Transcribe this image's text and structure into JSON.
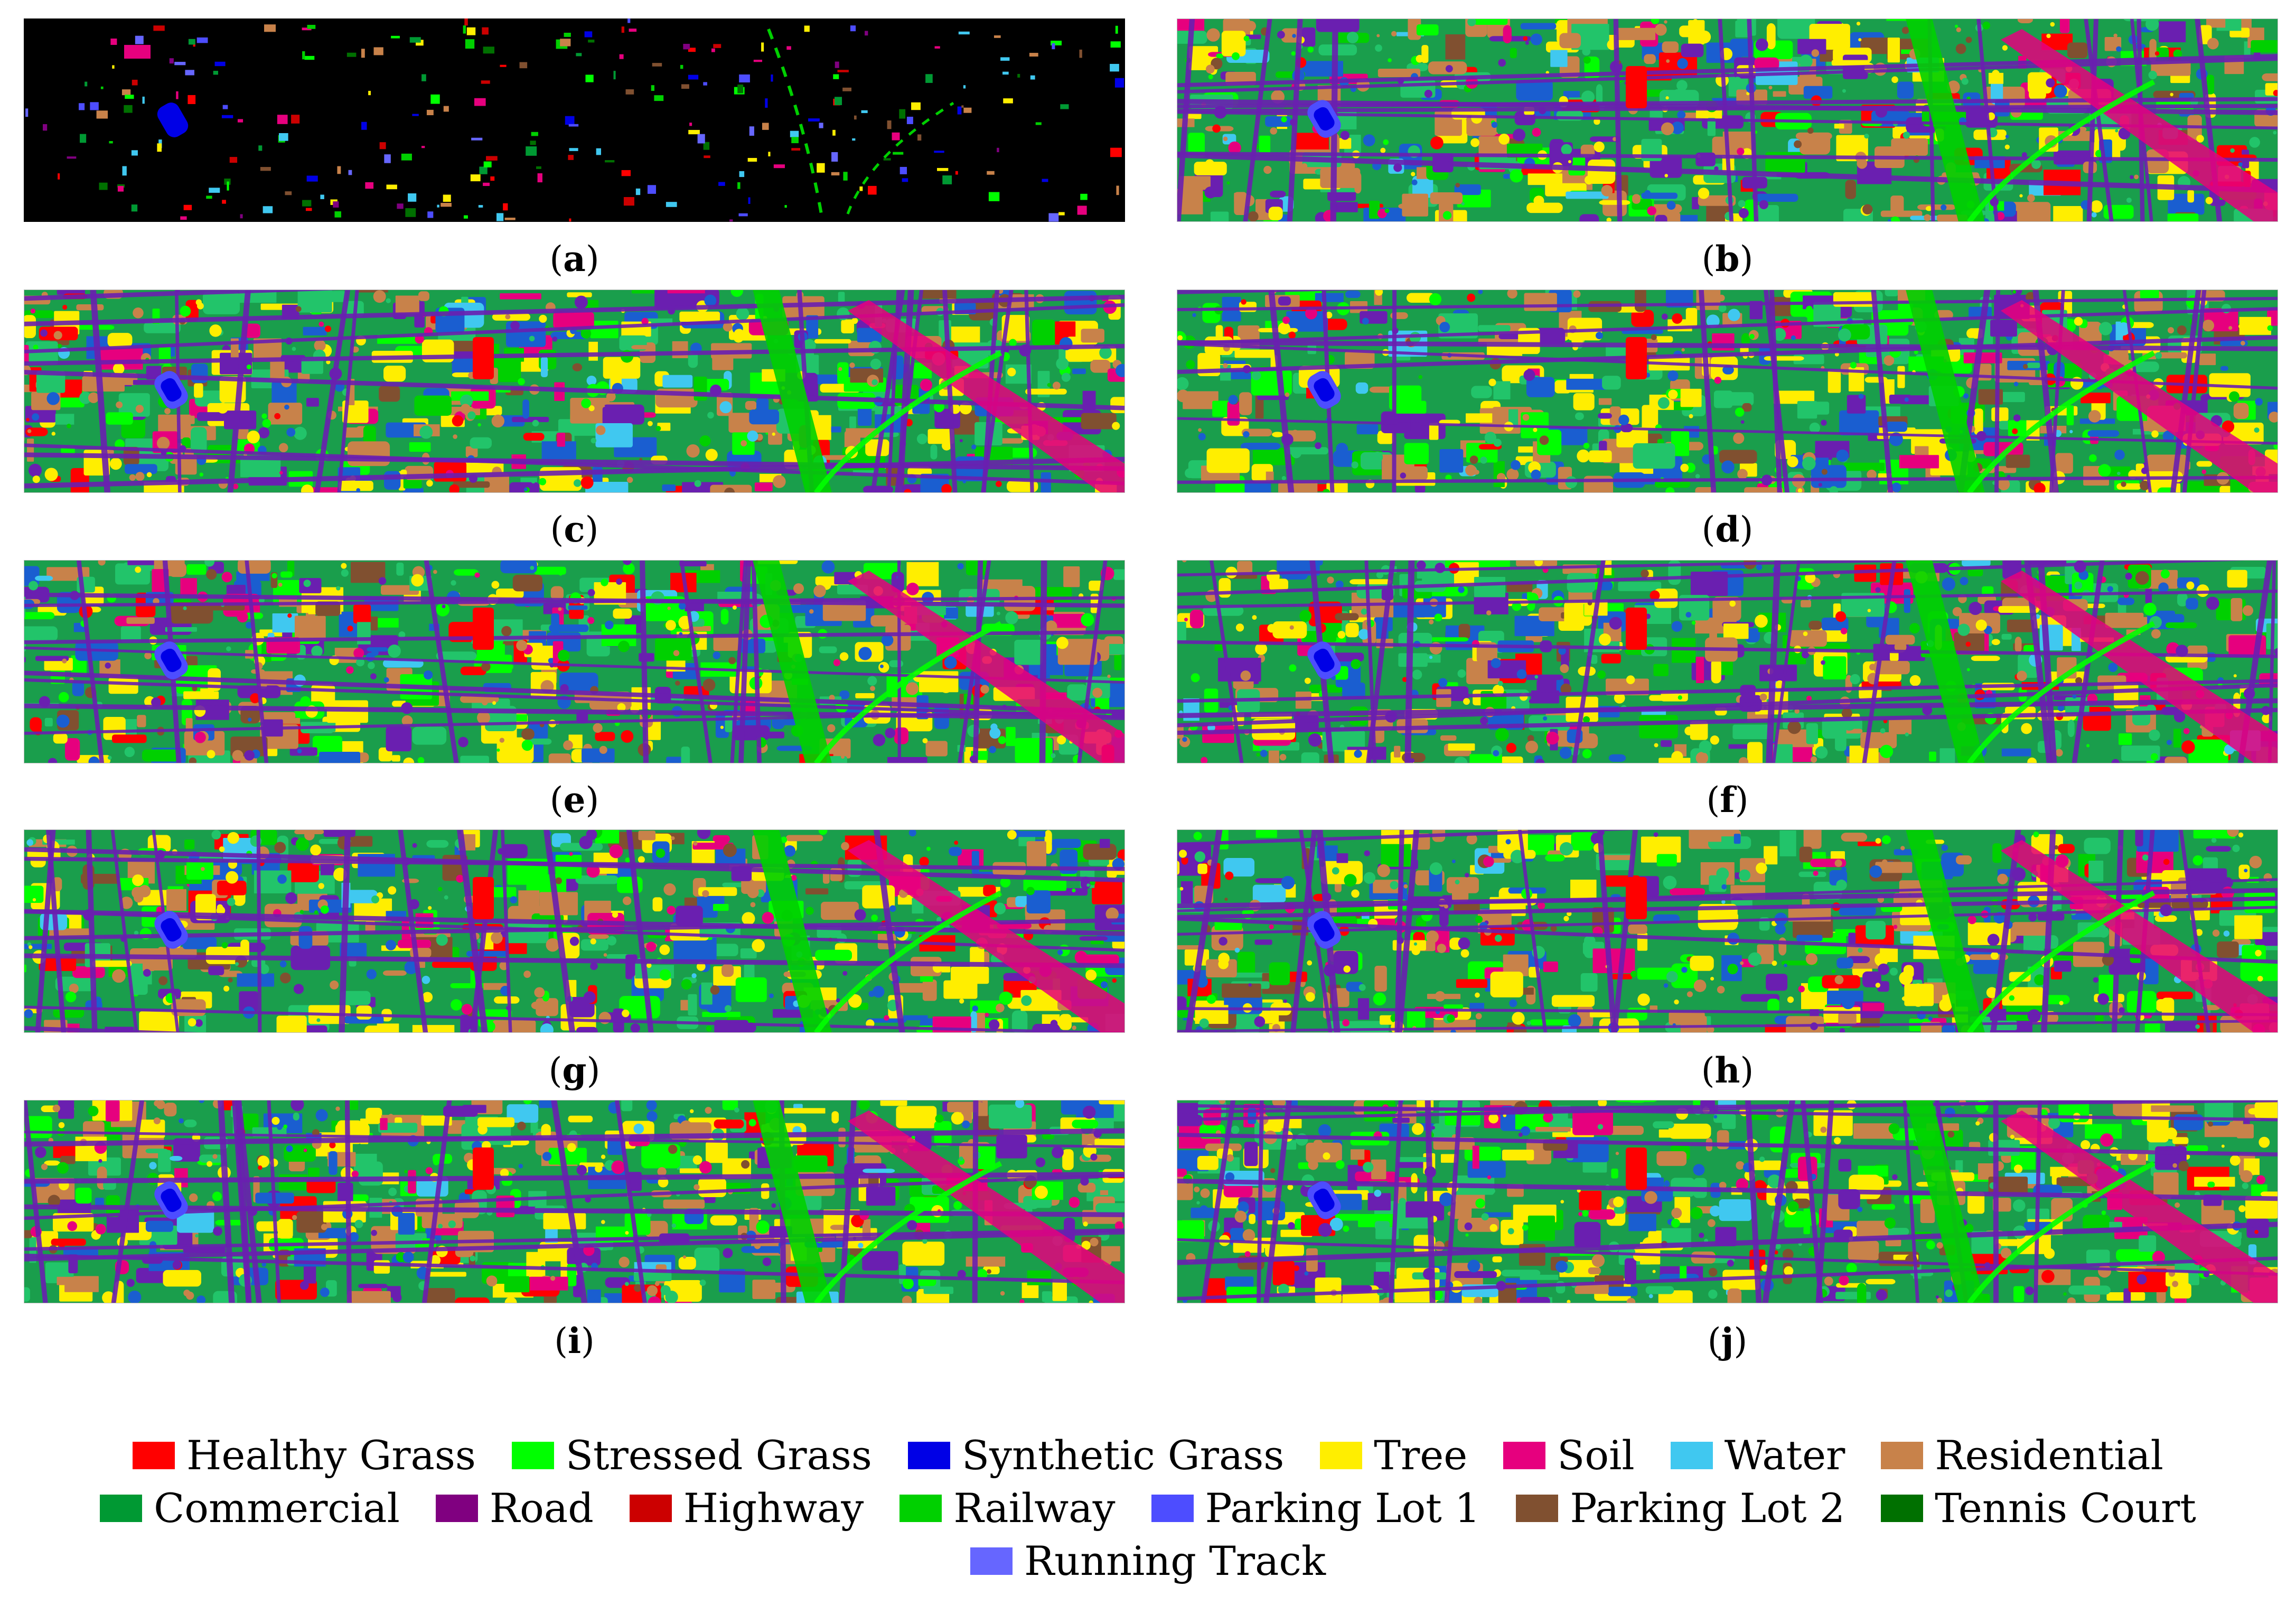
{
  "panels": [
    {
      "id": "a",
      "label": "a",
      "kind": "ground-truth",
      "background": "#000000"
    },
    {
      "id": "b",
      "label": "b",
      "kind": "classification-map"
    },
    {
      "id": "c",
      "label": "c",
      "kind": "classification-map"
    },
    {
      "id": "d",
      "label": "d",
      "kind": "classification-map"
    },
    {
      "id": "e",
      "label": "e",
      "kind": "classification-map"
    },
    {
      "id": "f",
      "label": "f",
      "kind": "classification-map"
    },
    {
      "id": "g",
      "label": "g",
      "kind": "classification-map"
    },
    {
      "id": "h",
      "label": "h",
      "kind": "classification-map"
    },
    {
      "id": "i",
      "label": "i",
      "kind": "classification-map"
    },
    {
      "id": "j",
      "label": "j",
      "kind": "classification-map"
    }
  ],
  "legend": {
    "items": [
      {
        "label": "Healthy Grass",
        "color": "#ff0000"
      },
      {
        "label": "Stressed Grass",
        "color": "#00ff00"
      },
      {
        "label": "Synthetic Grass",
        "color": "#0000e6"
      },
      {
        "label": "Tree",
        "color": "#ffee00"
      },
      {
        "label": "Soil",
        "color": "#e6007e"
      },
      {
        "label": "Water",
        "color": "#40c8f0"
      },
      {
        "label": "Residential",
        "color": "#c8824a"
      },
      {
        "label": "Commercial",
        "color": "#009933"
      },
      {
        "label": "Road",
        "color": "#800080"
      },
      {
        "label": "Highway",
        "color": "#cc0000"
      },
      {
        "label": "Railway",
        "color": "#00d000"
      },
      {
        "label": "Parking Lot 1",
        "color": "#4d4dff"
      },
      {
        "label": "Parking Lot 2",
        "color": "#805030"
      },
      {
        "label": "Tennis Court",
        "color": "#007000"
      },
      {
        "label": "Running Track",
        "color": "#6666ff"
      }
    ]
  },
  "colors": {
    "map_base": "#1a9e4c",
    "map_green": "#22c46a",
    "map_purple": "#6a1fb0",
    "map_blue": "#1a5ed0",
    "ground_truth_background": "#000000"
  }
}
